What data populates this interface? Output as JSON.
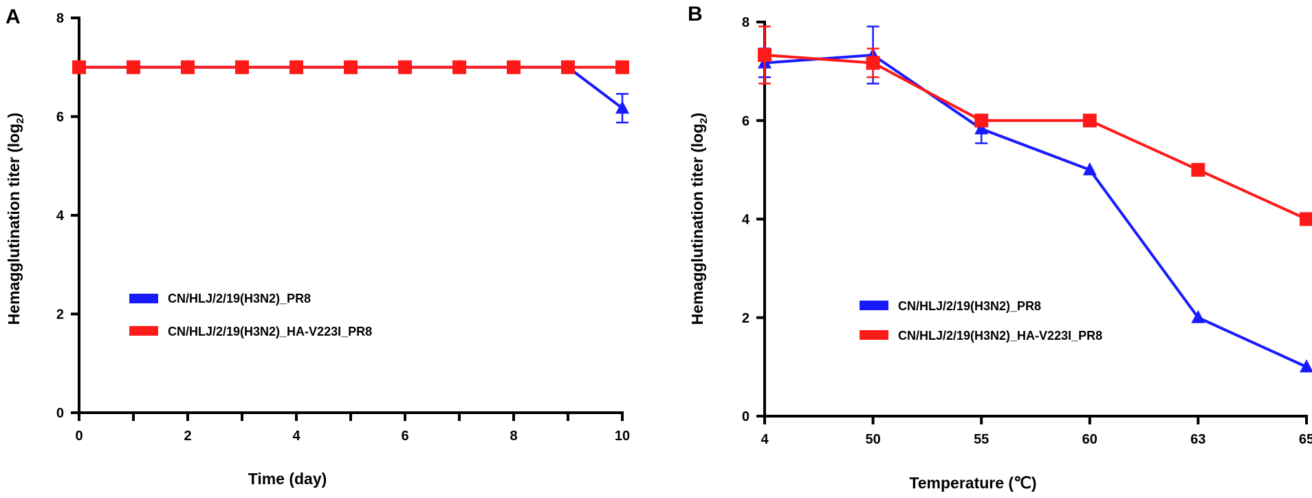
{
  "chart_data": [
    {
      "type": "line",
      "panel": "A",
      "xlabel": "Time (day)",
      "ylabel": "Hemagglutination titer (log",
      "ylabel_sub": "2",
      "ylabel_close": ")",
      "xlim": [
        0,
        10
      ],
      "ylim": [
        0,
        8
      ],
      "xticks": [
        0,
        2,
        4,
        6,
        8,
        10
      ],
      "yticks": [
        0,
        2,
        4,
        6,
        8
      ],
      "legend_position": "center-left",
      "series": [
        {
          "name": "CN/HLJ/2/19(H3N2)_PR8",
          "color": "#1a1aff",
          "marker": "triangle",
          "x": [
            0,
            1,
            2,
            3,
            4,
            5,
            6,
            7,
            8,
            9,
            10
          ],
          "values": [
            7,
            7,
            7,
            7,
            7,
            7,
            7,
            7,
            7,
            7,
            6.17
          ],
          "errors": [
            0,
            0,
            0,
            0,
            0,
            0,
            0,
            0,
            0,
            0,
            0.29
          ]
        },
        {
          "name": "CN/HLJ/2/19(H3N2)_HA-V223I_PR8",
          "color": "#ff1a1a",
          "marker": "square",
          "x": [
            0,
            1,
            2,
            3,
            4,
            5,
            6,
            7,
            8,
            9,
            10
          ],
          "values": [
            7,
            7,
            7,
            7,
            7,
            7,
            7,
            7,
            7,
            7,
            7
          ],
          "errors": [
            0,
            0,
            0,
            0,
            0,
            0,
            0,
            0,
            0,
            0,
            0
          ]
        }
      ]
    },
    {
      "type": "line",
      "panel": "B",
      "xlabel": "Temperature (℃)",
      "ylabel": "Hemagglutination titer (log",
      "ylabel_sub": "2",
      "ylabel_close": ")",
      "categories": [
        "4",
        "50",
        "55",
        "60",
        "63",
        "65"
      ],
      "ylim": [
        0,
        8
      ],
      "yticks": [
        0,
        2,
        4,
        6,
        8
      ],
      "legend_position": "center-right",
      "series": [
        {
          "name": "CN/HLJ/2/19(H3N2)_PR8",
          "color": "#1a1aff",
          "marker": "triangle",
          "values": [
            7.17,
            7.33,
            5.83,
            5,
            2,
            1
          ],
          "errors": [
            0.29,
            0.58,
            0.29,
            0,
            0,
            0
          ]
        },
        {
          "name": "CN/HLJ/2/19(H3N2)_HA-V223I_PR8",
          "color": "#ff1a1a",
          "marker": "square",
          "values": [
            7.33,
            7.17,
            6,
            6,
            5,
            4
          ],
          "errors": [
            0.58,
            0.29,
            0,
            0,
            0,
            0
          ]
        }
      ]
    }
  ]
}
